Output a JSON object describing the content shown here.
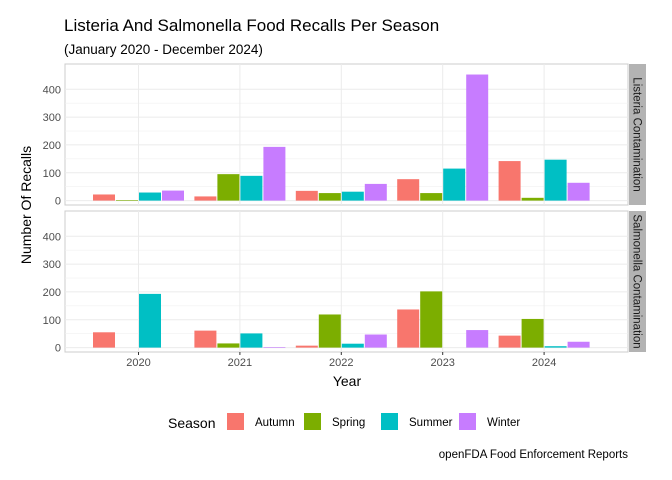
{
  "chart_data": {
    "type": "bar",
    "title": "Listeria And Salmonella Food Recalls Per Season",
    "subtitle": "(January 2020 - December 2024)",
    "xlabel": "Year",
    "ylabel": "Number Of Recalls",
    "caption": "openFDA Food Enforcement Reports",
    "categories": [
      "2020",
      "2021",
      "2022",
      "2023",
      "2024"
    ],
    "yticks": [
      0,
      100,
      200,
      300,
      400
    ],
    "ylim": [
      0,
      475
    ],
    "grid": true,
    "legend": {
      "title": "Season",
      "placement": "bottom",
      "entries": [
        "Autumn",
        "Spring",
        "Summer",
        "Winter"
      ]
    },
    "colors": {
      "Autumn": "#F8766D",
      "Spring": "#7CAE00",
      "Summer": "#00BFC4",
      "Winter": "#C77CFF"
    },
    "panels": [
      {
        "label": "Listeria Contamination",
        "series": [
          {
            "name": "Autumn",
            "values": [
              22,
              15,
              35,
              77,
              142
            ]
          },
          {
            "name": "Spring",
            "values": [
              2,
              95,
              27,
              27,
              10
            ]
          },
          {
            "name": "Summer",
            "values": [
              29,
              89,
              32,
              115,
              147
            ]
          },
          {
            "name": "Winter",
            "values": [
              36,
              193,
              60,
              453,
              64
            ]
          }
        ]
      },
      {
        "label": "Salmonella Contamination",
        "series": [
          {
            "name": "Autumn",
            "values": [
              55,
              61,
              7,
              137,
              43
            ]
          },
          {
            "name": "Spring",
            "values": [
              null,
              15,
              119,
              202,
              103
            ]
          },
          {
            "name": "Summer",
            "values": [
              193,
              51,
              14,
              null,
              5
            ]
          },
          {
            "name": "Winter",
            "values": [
              null,
              2,
              47,
              63,
              21
            ]
          }
        ]
      }
    ]
  }
}
